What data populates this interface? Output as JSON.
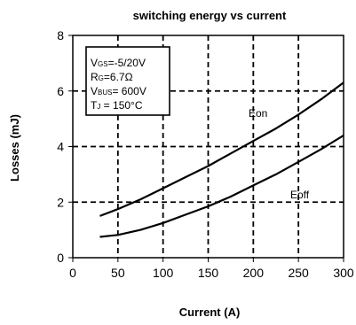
{
  "chart_data": {
    "type": "line",
    "title": "switching energy vs current",
    "xlabel": "Current (A)",
    "ylabel": "Losses (mJ)",
    "xlim": [
      0,
      300
    ],
    "ylim": [
      0,
      8
    ],
    "xticks": [
      0,
      50,
      100,
      150,
      200,
      250,
      300
    ],
    "yticks": [
      0,
      2,
      4,
      6,
      8
    ],
    "grid": "dashed",
    "conditions": [
      {
        "main": "V",
        "sub": "GS",
        "rest": "=-5/20V"
      },
      {
        "main": "R",
        "sub": "G",
        "rest": "=6.7Ω"
      },
      {
        "main": "V",
        "sub": "BUS",
        "rest": "= 600V"
      },
      {
        "main": "T",
        "sub": "J",
        "rest": " = 150°C"
      }
    ],
    "series": [
      {
        "name": "Eon",
        "x": [
          30,
          50,
          75,
          100,
          125,
          150,
          175,
          200,
          225,
          250,
          275,
          300
        ],
        "y": [
          1.5,
          1.75,
          2.1,
          2.5,
          2.9,
          3.3,
          3.75,
          4.2,
          4.65,
          5.15,
          5.7,
          6.3
        ]
      },
      {
        "name": "Eoff",
        "x": [
          30,
          50,
          75,
          100,
          125,
          150,
          175,
          200,
          225,
          250,
          275,
          300
        ],
        "y": [
          0.75,
          0.82,
          1.0,
          1.25,
          1.55,
          1.85,
          2.2,
          2.6,
          3.0,
          3.45,
          3.9,
          4.4
        ]
      }
    ]
  }
}
